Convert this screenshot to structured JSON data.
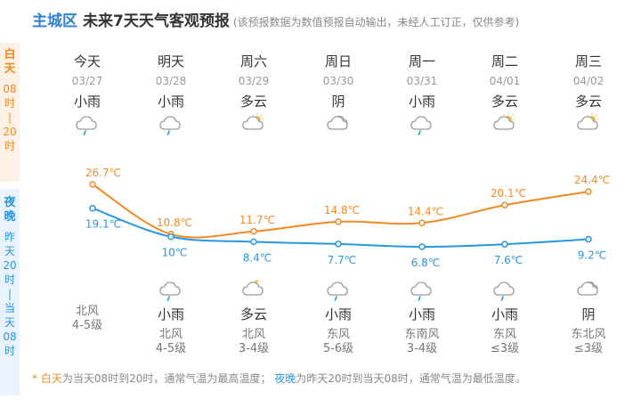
{
  "header": {
    "city": "主城区",
    "title": "未来7天天气客观预报",
    "note": "(该预报数据为数值预报自动输出，未经人工订正，仅供参考)"
  },
  "sidebar": {
    "day": [
      "白",
      "天",
      "08",
      "时",
      "|",
      "20",
      "时"
    ],
    "night": [
      "夜",
      "晚",
      "昨",
      "天",
      "20",
      "时",
      "|",
      "当",
      "天",
      "08",
      "时"
    ]
  },
  "days": [
    {
      "name": "今天",
      "date": "03/27",
      "day_weather": "小雨",
      "day_icon": "light-rain",
      "high": "26.7℃",
      "low": "19.1℃",
      "night_icon": "light-rain",
      "night_weather": "",
      "wind_dir": "北风",
      "wind_level": "4-5级"
    },
    {
      "name": "明天",
      "date": "03/28",
      "day_weather": "小雨",
      "day_icon": "light-rain",
      "high": "10.8℃",
      "low": "10℃",
      "night_icon": "light-rain",
      "night_weather": "小雨",
      "wind_dir": "北风",
      "wind_level": "4-5级"
    },
    {
      "name": "周六",
      "date": "03/29",
      "day_weather": "多云",
      "day_icon": "partly-cloudy-day",
      "high": "11.7℃",
      "low": "8.4℃",
      "night_icon": "partly-cloudy-night",
      "night_weather": "多云",
      "wind_dir": "北风",
      "wind_level": "3-4级"
    },
    {
      "name": "周日",
      "date": "03/30",
      "day_weather": "阴",
      "day_icon": "overcast",
      "high": "14.8℃",
      "low": "7.7℃",
      "night_icon": "light-rain",
      "night_weather": "小雨",
      "wind_dir": "东风",
      "wind_level": "5-6级"
    },
    {
      "name": "周一",
      "date": "03/31",
      "day_weather": "小雨",
      "day_icon": "light-rain",
      "high": "14.4℃",
      "low": "6.8℃",
      "night_icon": "light-rain",
      "night_weather": "小雨",
      "wind_dir": "东南风",
      "wind_level": "3-4级"
    },
    {
      "name": "周二",
      "date": "04/01",
      "day_weather": "多云",
      "day_icon": "partly-cloudy-day",
      "high": "20.1℃",
      "low": "7.6℃",
      "night_icon": "light-rain",
      "night_weather": "小雨",
      "wind_dir": "东风",
      "wind_level": "≤3级"
    },
    {
      "name": "周三",
      "date": "04/02",
      "day_weather": "多云",
      "day_icon": "partly-cloudy-day",
      "high": "24.4℃",
      "low": "9.2℃",
      "night_icon": "overcast",
      "night_weather": "阴",
      "wind_dir": "东北风",
      "wind_level": "≤3级"
    }
  ],
  "chart_data": {
    "type": "line",
    "series": [
      {
        "values": [
          26.7,
          10.8,
          11.7,
          14.8,
          14.4,
          20.1,
          24.4
        ],
        "color": "#f08a24"
      },
      {
        "values": [
          19.1,
          10,
          8.4,
          7.7,
          6.8,
          7.6,
          9.2
        ],
        "color": "#2996e0"
      }
    ]
  },
  "footer": {
    "asterisk": "*",
    "day_word": "白天",
    "day_text": "为当天08时到20时，通常气温为最高温度；",
    "night_word": "夜晚",
    "night_text": "为昨天20时到当天08时，通常气温为最低温度。"
  },
  "colors": {
    "accent": "#2f80d1",
    "high": "#f08a24",
    "low": "#2996e0"
  }
}
